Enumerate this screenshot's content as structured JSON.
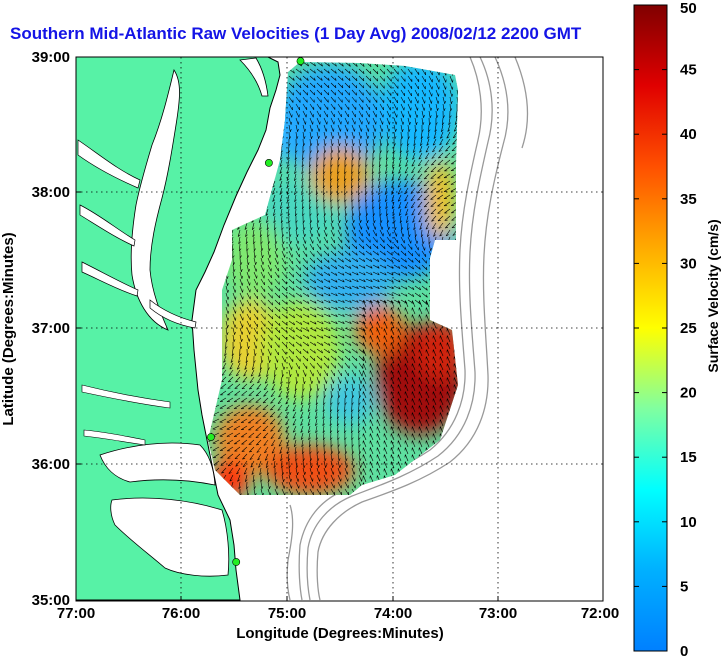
{
  "title": "Southern Mid-Atlantic Raw Velocities (1 Day Avg) 2008/02/12 2200 GMT",
  "map": {
    "x_ticks": [
      "77:00",
      "76:00",
      "75:00",
      "74:00",
      "73:00",
      "72:00"
    ],
    "y_ticks": [
      "39:00",
      "38:00",
      "37:00",
      "36:00",
      "35:00"
    ],
    "x_label": "Longitude (Degrees:Minutes)",
    "y_label": "Latitude (Degrees:Minutes)",
    "lon_range": [
      -77,
      -72
    ],
    "lat_range": [
      35,
      39
    ],
    "colors": {
      "land": "#57f2a6",
      "coast": "#000000",
      "bathymetry": "#999999",
      "station": "#22ee22",
      "grid": "#000000"
    },
    "stations": [
      {
        "name": "station-north",
        "lon": -74.87,
        "lat": 38.97
      },
      {
        "name": "station-delmarva",
        "lon": -75.17,
        "lat": 38.22
      },
      {
        "name": "station-outer-banks-north",
        "lon": -75.72,
        "lat": 36.2
      },
      {
        "name": "station-outer-banks-south",
        "lon": -75.48,
        "lat": 35.28
      }
    ]
  },
  "colorbar": {
    "label": "Surface Velocity (cm/s)",
    "ticks": [
      "0",
      "5",
      "10",
      "15",
      "20",
      "25",
      "30",
      "35",
      "40",
      "45",
      "50"
    ],
    "min": 0,
    "max": 50,
    "colormap": "jet"
  }
}
